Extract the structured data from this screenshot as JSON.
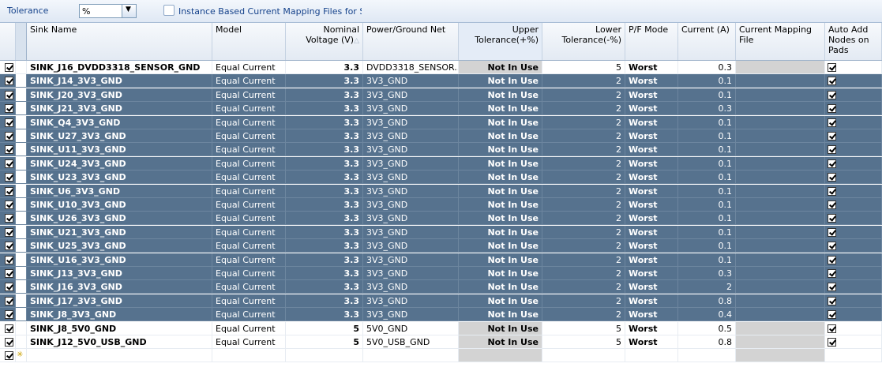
{
  "toolbar": {
    "tolerance_label": "Tolerance",
    "tolerance_value": "%",
    "dropdown_arrow": "▼",
    "instance_label": "Instance Based Current Mapping Files for Sinks"
  },
  "headers": {
    "sink_name": "Sink Name",
    "model": "Model",
    "nominal_voltage": "Nominal Voltage (V)",
    "sort_glyph": "△",
    "net": "Power/Ground Net",
    "upper_tol": "Upper Tolerance(+%)",
    "lower_tol": "Lower Tolerance(-%)",
    "pf_mode": "P/F Mode",
    "current": "Current (A)",
    "mapping_file": "Current Mapping File",
    "auto_add": "Auto Add Nodes on Pads"
  },
  "rows": [
    {
      "name": "SINK_J16_DVDD3318_SENSOR_GND",
      "model": "Equal Current",
      "voltage": "3.3",
      "net": "DVDD3318_SENSOR...",
      "upper": "Not In Use",
      "lower": "5",
      "mode": "Worst",
      "current": "0.3",
      "dark": false
    },
    {
      "name": "SINK_J14_3V3_GND",
      "model": "Equal Current",
      "voltage": "3.3",
      "net": "3V3_GND",
      "upper": "Not In Use",
      "lower": "2",
      "mode": "Worst",
      "current": "0.1",
      "dark": true
    },
    {
      "name": "SINK_J20_3V3_GND",
      "model": "Equal Current",
      "voltage": "3.3",
      "net": "3V3_GND",
      "upper": "Not In Use",
      "lower": "2",
      "mode": "Worst",
      "current": "0.1",
      "dark": true
    },
    {
      "name": "SINK_J21_3V3_GND",
      "model": "Equal Current",
      "voltage": "3.3",
      "net": "3V3_GND",
      "upper": "Not In Use",
      "lower": "2",
      "mode": "Worst",
      "current": "0.3",
      "dark": true
    },
    {
      "name": "SINK_Q4_3V3_GND",
      "model": "Equal Current",
      "voltage": "3.3",
      "net": "3V3_GND",
      "upper": "Not In Use",
      "lower": "2",
      "mode": "Worst",
      "current": "0.1",
      "dark": true
    },
    {
      "name": "SINK_U27_3V3_GND",
      "model": "Equal Current",
      "voltage": "3.3",
      "net": "3V3_GND",
      "upper": "Not In Use",
      "lower": "2",
      "mode": "Worst",
      "current": "0.1",
      "dark": true
    },
    {
      "name": "SINK_U11_3V3_GND",
      "model": "Equal Current",
      "voltage": "3.3",
      "net": "3V3_GND",
      "upper": "Not In Use",
      "lower": "2",
      "mode": "Worst",
      "current": "0.1",
      "dark": true
    },
    {
      "name": "SINK_U24_3V3_GND",
      "model": "Equal Current",
      "voltage": "3.3",
      "net": "3V3_GND",
      "upper": "Not In Use",
      "lower": "2",
      "mode": "Worst",
      "current": "0.1",
      "dark": true
    },
    {
      "name": "SINK_U23_3V3_GND",
      "model": "Equal Current",
      "voltage": "3.3",
      "net": "3V3_GND",
      "upper": "Not In Use",
      "lower": "2",
      "mode": "Worst",
      "current": "0.1",
      "dark": true
    },
    {
      "name": "SINK_U6_3V3_GND",
      "model": "Equal Current",
      "voltage": "3.3",
      "net": "3V3_GND",
      "upper": "Not In Use",
      "lower": "2",
      "mode": "Worst",
      "current": "0.1",
      "dark": true
    },
    {
      "name": "SINK_U10_3V3_GND",
      "model": "Equal Current",
      "voltage": "3.3",
      "net": "3V3_GND",
      "upper": "Not In Use",
      "lower": "2",
      "mode": "Worst",
      "current": "0.1",
      "dark": true
    },
    {
      "name": "SINK_U26_3V3_GND",
      "model": "Equal Current",
      "voltage": "3.3",
      "net": "3V3_GND",
      "upper": "Not In Use",
      "lower": "2",
      "mode": "Worst",
      "current": "0.1",
      "dark": true
    },
    {
      "name": "SINK_U21_3V3_GND",
      "model": "Equal Current",
      "voltage": "3.3",
      "net": "3V3_GND",
      "upper": "Not In Use",
      "lower": "2",
      "mode": "Worst",
      "current": "0.1",
      "dark": true
    },
    {
      "name": "SINK_U25_3V3_GND",
      "model": "Equal Current",
      "voltage": "3.3",
      "net": "3V3_GND",
      "upper": "Not In Use",
      "lower": "2",
      "mode": "Worst",
      "current": "0.1",
      "dark": true
    },
    {
      "name": "SINK_U16_3V3_GND",
      "model": "Equal Current",
      "voltage": "3.3",
      "net": "3V3_GND",
      "upper": "Not In Use",
      "lower": "2",
      "mode": "Worst",
      "current": "0.1",
      "dark": true
    },
    {
      "name": "SINK_J13_3V3_GND",
      "model": "Equal Current",
      "voltage": "3.3",
      "net": "3V3_GND",
      "upper": "Not In Use",
      "lower": "2",
      "mode": "Worst",
      "current": "0.3",
      "dark": true
    },
    {
      "name": "SINK_J16_3V3_GND",
      "model": "Equal Current",
      "voltage": "3.3",
      "net": "3V3_GND",
      "upper": "Not In Use",
      "lower": "2",
      "mode": "Worst",
      "current": "2",
      "dark": true
    },
    {
      "name": "SINK_J17_3V3_GND",
      "model": "Equal Current",
      "voltage": "3.3",
      "net": "3V3_GND",
      "upper": "Not In Use",
      "lower": "2",
      "mode": "Worst",
      "current": "0.8",
      "dark": true
    },
    {
      "name": "SINK_J8_3V3_GND",
      "model": "Equal Current",
      "voltage": "3.3",
      "net": "3V3_GND",
      "upper": "Not In Use",
      "lower": "2",
      "mode": "Worst",
      "current": "0.4",
      "dark": true
    },
    {
      "name": "SINK_J8_5V0_GND",
      "model": "Equal Current",
      "voltage": "5",
      "net": "5V0_GND",
      "upper": "Not In Use",
      "lower": "5",
      "mode": "Worst",
      "current": "0.5",
      "dark": false
    },
    {
      "name": "SINK_J12_5V0_USB_GND",
      "model": "Equal Current",
      "voltage": "5",
      "net": "5V0_USB_GND",
      "upper": "Not In Use",
      "lower": "5",
      "mode": "Worst",
      "current": "0.8",
      "dark": false
    }
  ]
}
